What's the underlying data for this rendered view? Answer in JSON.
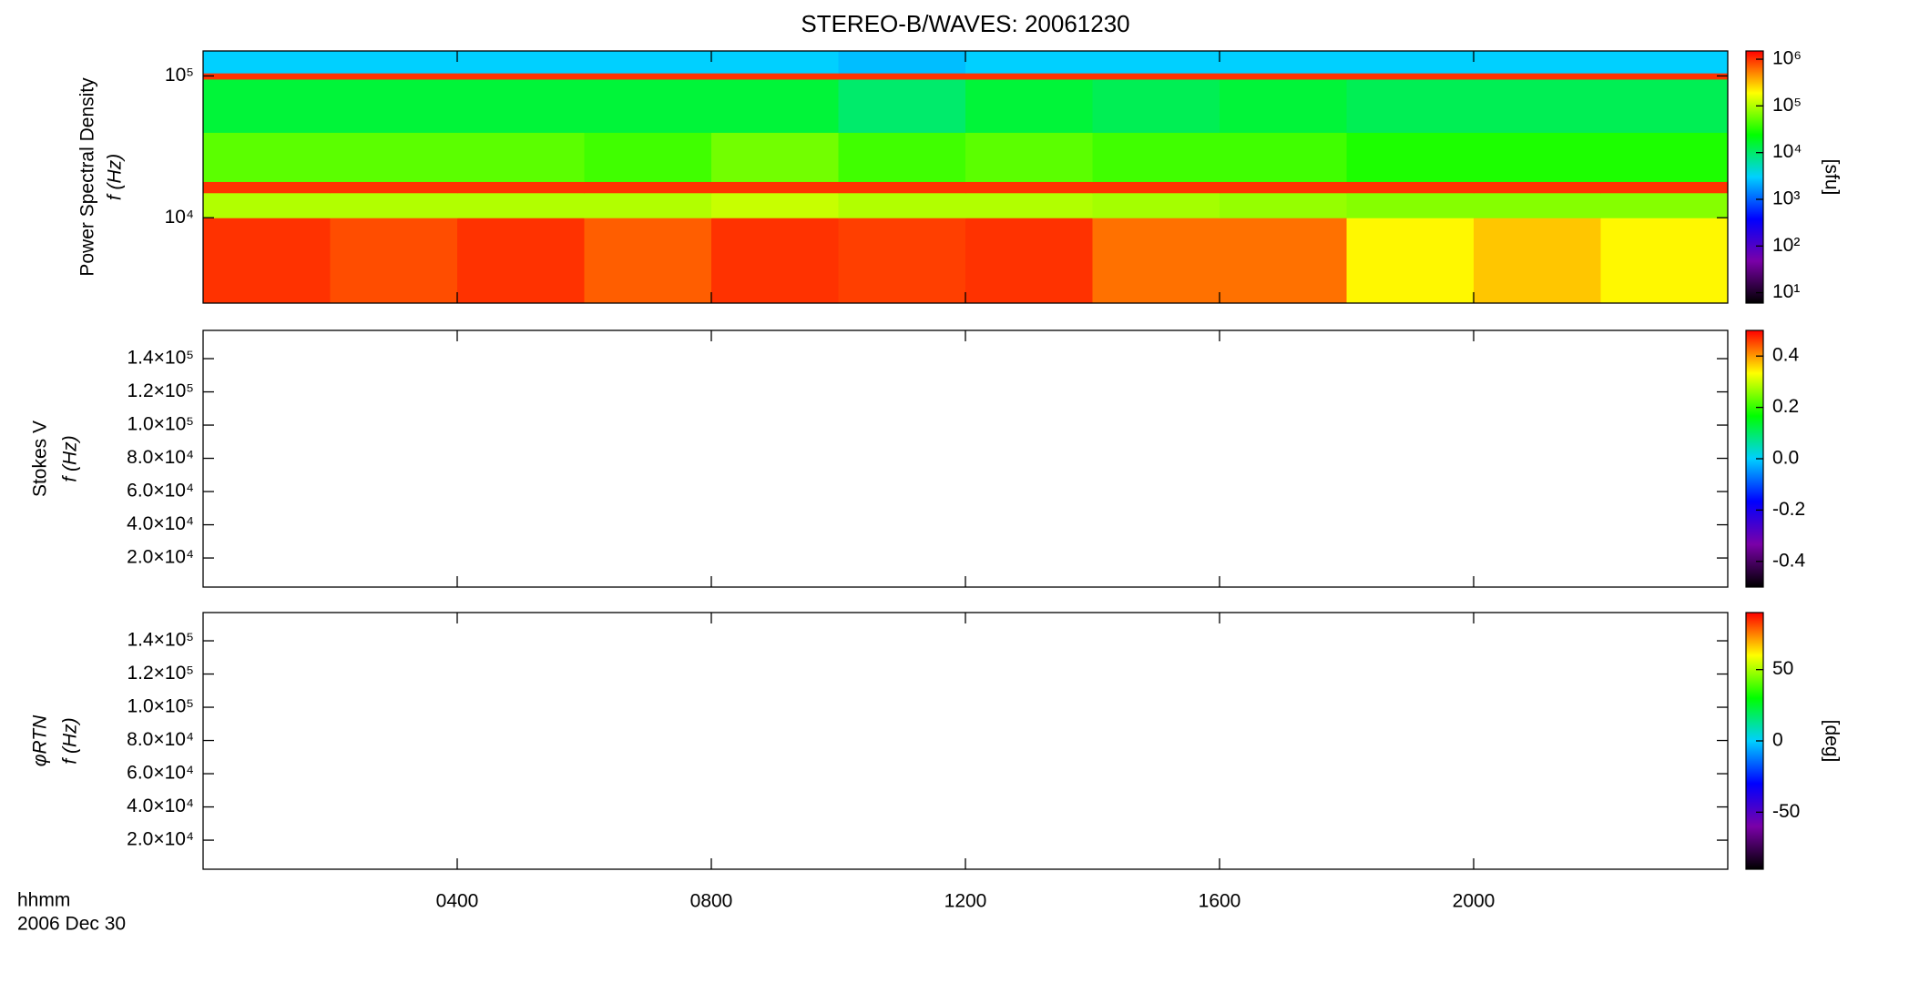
{
  "title": "STEREO-B/WAVES: 20061230",
  "x_axis": {
    "label": "hhmm",
    "date": "2006 Dec 30",
    "xlim": [
      0,
      24
    ],
    "xticks": [
      {
        "value": 4,
        "label": "0400"
      },
      {
        "value": 8,
        "label": "0800"
      },
      {
        "value": 12,
        "label": "1200"
      },
      {
        "value": 16,
        "label": "1600"
      },
      {
        "value": 20,
        "label": "2000"
      }
    ]
  },
  "colormap": [
    "#000000",
    "#7a00a8",
    "#0000ff",
    "#00d0ff",
    "#00ff00",
    "#ffff00",
    "#ff0000"
  ],
  "chart_data": [
    {
      "type": "heatmap",
      "ylabel": [
        "Power Spectral Density",
        "f (Hz)"
      ],
      "ylog": true,
      "ylim": [
        2500,
        150000
      ],
      "yticks": [
        {
          "value": 10000,
          "label": "10⁴"
        },
        {
          "value": 100000,
          "label": "10⁵"
        }
      ],
      "x_bins": [
        0,
        2,
        4,
        6,
        8,
        10,
        12,
        14,
        16,
        18,
        20,
        22,
        24
      ],
      "y_bins": [
        2500,
        10000,
        15000,
        18000,
        40000,
        95000,
        105000,
        150000
      ],
      "z": [
        [
          1000000,
          800000,
          1000000,
          700000,
          1000000,
          900000,
          1000000,
          600000,
          600000,
          200000,
          300000,
          200000
        ],
        [
          100000,
          100000,
          100000,
          100000,
          120000,
          100000,
          100000,
          90000,
          80000,
          70000,
          70000,
          70000
        ],
        [
          1000000,
          1000000,
          1000000,
          1000000,
          1000000,
          1000000,
          1000000,
          1000000,
          1000000,
          1000000,
          1000000,
          1000000
        ],
        [
          50000,
          50000,
          50000,
          40000,
          60000,
          40000,
          50000,
          40000,
          40000,
          30000,
          30000,
          30000
        ],
        [
          15000,
          15000,
          15000,
          15000,
          15000,
          10000,
          15000,
          12000,
          15000,
          12000,
          12000,
          12000
        ],
        [
          1000000,
          1000000,
          1000000,
          1000000,
          1000000,
          1000000,
          1000000,
          1000000,
          1000000,
          1000000,
          1000000,
          1000000
        ],
        [
          3000,
          3000,
          3000,
          3000,
          3000,
          2500,
          3000,
          3000,
          3000,
          3000,
          3000,
          3000
        ]
      ],
      "colorbar": {
        "log": true,
        "zlim": [
          6,
          1500000
        ],
        "label": "[sfu]",
        "zticks": [
          {
            "value": 10,
            "label": "10¹"
          },
          {
            "value": 100,
            "label": "10²"
          },
          {
            "value": 1000,
            "label": "10³"
          },
          {
            "value": 10000,
            "label": "10⁴"
          },
          {
            "value": 100000,
            "label": "10⁵"
          },
          {
            "value": 1000000,
            "label": "10⁶"
          }
        ]
      }
    },
    {
      "type": "heatmap",
      "ylabel": [
        "Stokes V",
        "f (Hz)"
      ],
      "ylog": false,
      "ylim": [
        2500,
        157000
      ],
      "yticks": [
        {
          "value": 20000,
          "label": "2.0×10⁴"
        },
        {
          "value": 40000,
          "label": "4.0×10⁴"
        },
        {
          "value": 60000,
          "label": "6.0×10⁴"
        },
        {
          "value": 80000,
          "label": "8.0×10⁴"
        },
        {
          "value": 100000,
          "label": "1.0×10⁵"
        },
        {
          "value": 120000,
          "label": "1.2×10⁵"
        },
        {
          "value": 140000,
          "label": "1.4×10⁵"
        }
      ],
      "colorbar": {
        "log": false,
        "zlim": [
          -0.5,
          0.5
        ],
        "zticks": [
          -0.4,
          -0.2,
          {
            "value": 0,
            "label": "0.0"
          },
          0.2,
          0.4
        ]
      }
    },
    {
      "type": "heatmap",
      "ylabel": [
        "φRTN",
        "f (Hz)"
      ],
      "ylog": false,
      "ylim": [
        2500,
        157000
      ],
      "yticks": [
        {
          "value": 20000,
          "label": "2.0×10⁴"
        },
        {
          "value": 40000,
          "label": "4.0×10⁴"
        },
        {
          "value": 60000,
          "label": "6.0×10⁴"
        },
        {
          "value": 80000,
          "label": "8.0×10⁴"
        },
        {
          "value": 100000,
          "label": "1.0×10⁵"
        },
        {
          "value": 120000,
          "label": "1.2×10⁵"
        },
        {
          "value": 140000,
          "label": "1.4×10⁵"
        }
      ],
      "colorbar": {
        "log": false,
        "zlim": [
          -90,
          90
        ],
        "label": "[deg]",
        "zticks": [
          -50,
          0,
          50
        ]
      }
    }
  ]
}
